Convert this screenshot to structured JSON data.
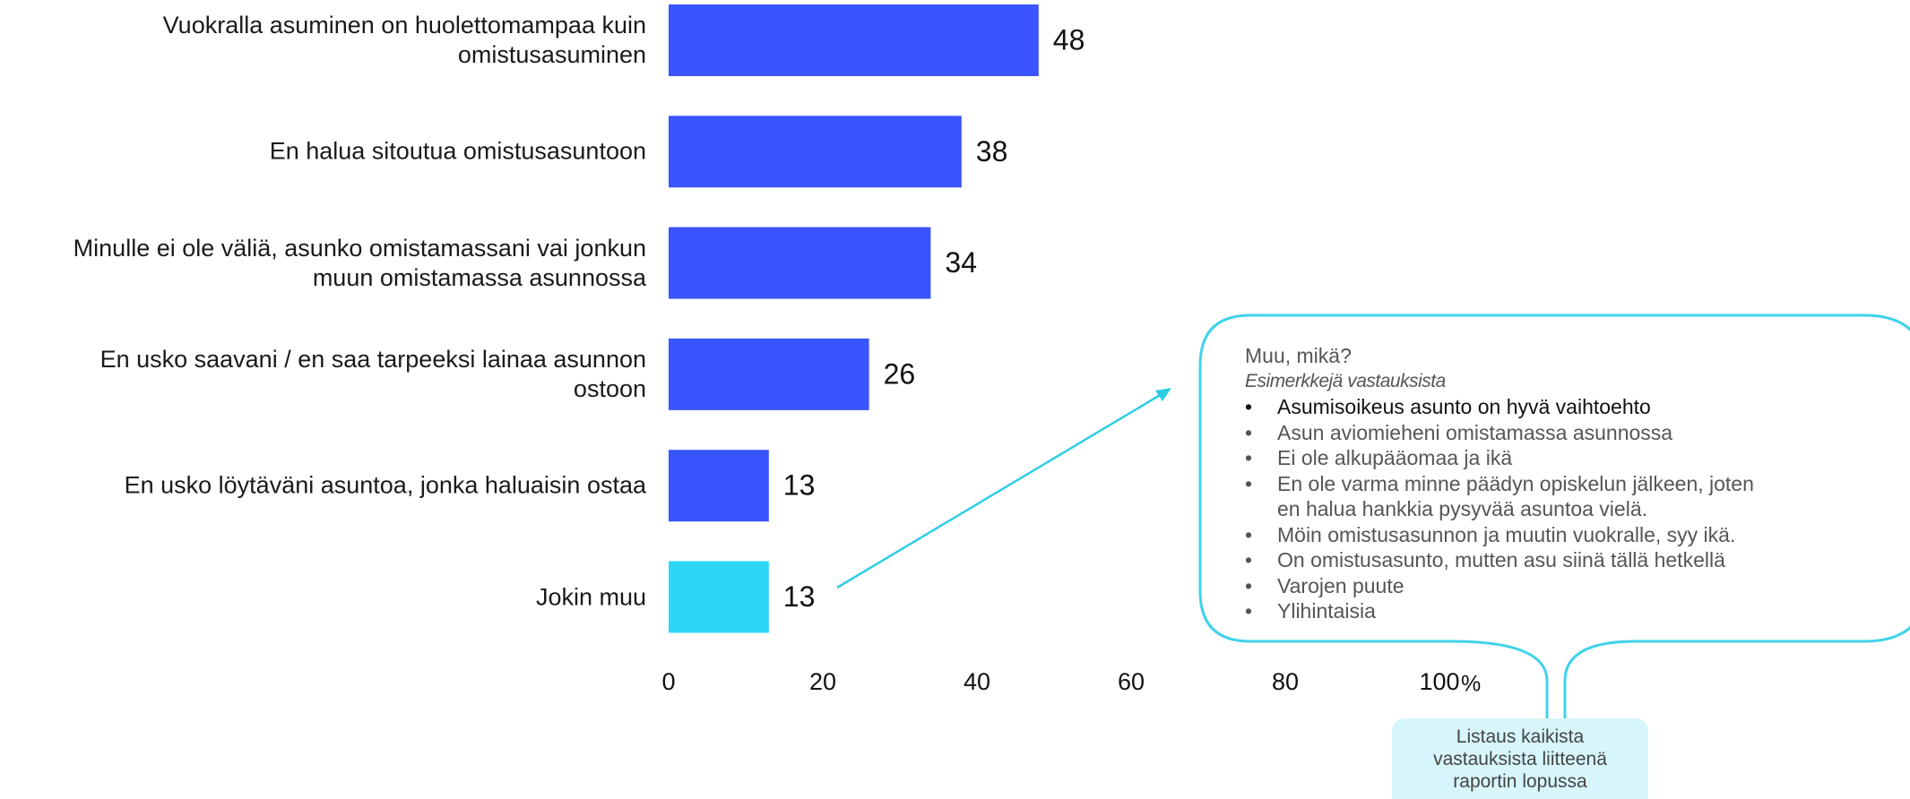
{
  "chart_data": {
    "type": "barh",
    "categories": [
      "Vuokralla asuminen on huolettomampaa kuin\nomistusasuminen",
      "En halua sitoutua omistusasuntoon",
      "Minulle ei ole väliä, asunko omistamassani vai jonkun\nmuun omistamassa asunnossa",
      "En usko saavani / en saa tarpeeksi lainaa asunnon\nostoon",
      "En usko löytäväni asuntoa, jonka haluaisin ostaa",
      "Jokin muu"
    ],
    "values": [
      48,
      38,
      34,
      26,
      13,
      13
    ],
    "colors": [
      "#3a54ff",
      "#3a54ff",
      "#3a54ff",
      "#3a54ff",
      "#3a54ff",
      "#2ed6f5"
    ],
    "xlim": [
      0,
      100
    ],
    "xticks": [
      0,
      20,
      40,
      60,
      80,
      100
    ],
    "x_unit": "%",
    "annotation": {
      "title": "Muu, mikä?",
      "subtitle": "Esimerkkejä vastauksista",
      "items": [
        "Asumisoikeus asunto on hyvä vaihtoehto",
        "Asun aviomieheni omistamassa asunnossa",
        "Ei ole alkupääomaa ja ikä",
        "En ole varma minne päädyn opiskelun jälkeen, joten\nen halua hankkia pysyvää asuntoa vielä.",
        "Möin omistusasunnon ja muutin vuokralle, syy ikä.",
        "On omistusasunto, mutten asu siinä tällä hetkellä",
        "Varojen puute",
        "Ylihintaisia"
      ]
    },
    "note": "Listaus kaikista\nvastauksista liitteenä\nraportin lopussa"
  }
}
